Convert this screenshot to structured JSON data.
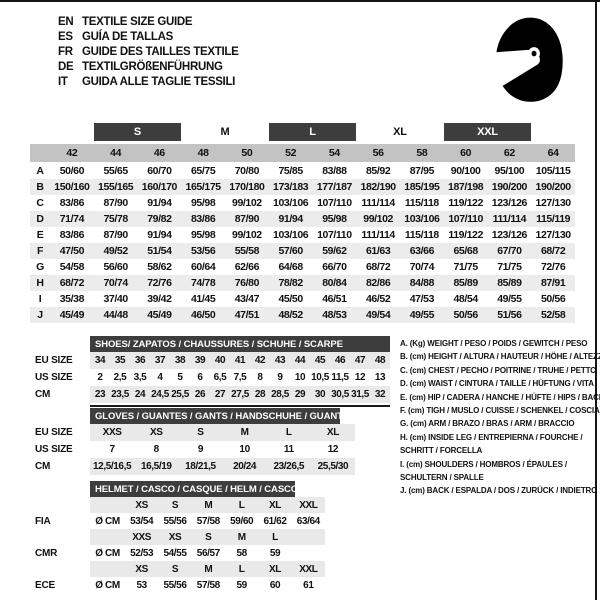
{
  "header": {
    "languages": [
      {
        "code": "EN",
        "title": "TEXTILE SIZE GUIDE"
      },
      {
        "code": "ES",
        "title": "GUÍA DE TALLAS"
      },
      {
        "code": "FR",
        "title": "GUIDE DES TAILLES TEXTILE"
      },
      {
        "code": "DE",
        "title": "TEXTILGRÖßENFÜHRUNG"
      },
      {
        "code": "IT",
        "title": "GUIDA ALLE TAGLIE TESSILI"
      }
    ],
    "logo_icon": "racing-helmet-icon"
  },
  "main_table": {
    "size_groups": [
      {
        "label": "S",
        "highlighted": true
      },
      {
        "label": "M",
        "highlighted": false
      },
      {
        "label": "L",
        "highlighted": true
      },
      {
        "label": "XL",
        "highlighted": false
      },
      {
        "label": "XXL",
        "highlighted": true
      }
    ],
    "numeric_sizes": [
      "42",
      "44",
      "46",
      "48",
      "50",
      "52",
      "54",
      "56",
      "58",
      "60",
      "62",
      "64"
    ],
    "rows": [
      {
        "letter": "A",
        "values": [
          "50/60",
          "55/65",
          "60/70",
          "65/75",
          "70/80",
          "75/85",
          "83/88",
          "85/92",
          "87/95",
          "90/100",
          "95/100",
          "105/115"
        ]
      },
      {
        "letter": "B",
        "values": [
          "150/160",
          "155/165",
          "160/170",
          "165/175",
          "170/180",
          "173/183",
          "177/187",
          "182/190",
          "185/195",
          "187/198",
          "190/200",
          "190/200"
        ]
      },
      {
        "letter": "C",
        "values": [
          "83/86",
          "87/90",
          "91/94",
          "95/98",
          "99/102",
          "103/106",
          "107/110",
          "111/114",
          "115/118",
          "119/122",
          "123/126",
          "127/130"
        ]
      },
      {
        "letter": "D",
        "values": [
          "71/74",
          "75/78",
          "79/82",
          "83/86",
          "87/90",
          "91/94",
          "95/98",
          "99/102",
          "103/106",
          "107/110",
          "111/114",
          "115/119"
        ]
      },
      {
        "letter": "E",
        "values": [
          "83/86",
          "87/90",
          "91/94",
          "95/98",
          "99/102",
          "103/106",
          "107/110",
          "111/114",
          "115/118",
          "119/122",
          "123/126",
          "127/130"
        ]
      },
      {
        "letter": "F",
        "values": [
          "47/50",
          "49/52",
          "51/54",
          "53/56",
          "55/58",
          "57/60",
          "59/62",
          "61/63",
          "63/66",
          "65/68",
          "67/70",
          "68/72"
        ]
      },
      {
        "letter": "G",
        "values": [
          "54/58",
          "56/60",
          "58/62",
          "60/64",
          "62/66",
          "64/68",
          "66/70",
          "68/72",
          "70/74",
          "71/75",
          "71/75",
          "72/76"
        ]
      },
      {
        "letter": "H",
        "values": [
          "68/72",
          "70/74",
          "72/76",
          "74/78",
          "76/80",
          "78/82",
          "80/84",
          "82/86",
          "84/88",
          "85/89",
          "85/89",
          "87/91"
        ]
      },
      {
        "letter": "I",
        "values": [
          "35/38",
          "37/40",
          "39/42",
          "41/45",
          "43/47",
          "45/50",
          "46/51",
          "46/52",
          "47/53",
          "48/54",
          "49/55",
          "50/56"
        ]
      },
      {
        "letter": "J",
        "values": [
          "45/49",
          "44/48",
          "45/49",
          "46/50",
          "47/51",
          "48/52",
          "48/53",
          "49/54",
          "49/55",
          "50/56",
          "51/56",
          "52/58"
        ]
      }
    ]
  },
  "shoes": {
    "title": "SHOES/ ZAPATOS / CHAUSSURES / SCHUHE / SCARPE",
    "rows": [
      {
        "label": "EU SIZE",
        "values": [
          "34",
          "35",
          "36",
          "37",
          "38",
          "39",
          "40",
          "41",
          "42",
          "43",
          "44",
          "45",
          "46",
          "47",
          "48"
        ]
      },
      {
        "label": "US SIZE",
        "values": [
          "2",
          "2,5",
          "3,5",
          "4",
          "5",
          "6",
          "6,5",
          "7,5",
          "8",
          "9",
          "10",
          "10,5",
          "11,5",
          "12",
          "13"
        ]
      },
      {
        "label": "CM",
        "values": [
          "23",
          "23,5",
          "24",
          "24,5",
          "25,5",
          "26",
          "27",
          "27,5",
          "28",
          "28,5",
          "29",
          "30",
          "30,5",
          "31,5",
          "32"
        ]
      }
    ]
  },
  "gloves": {
    "title": "GLOVES / GUANTES / GANTS / HANDSCHUHE / GUANTI",
    "rows": [
      {
        "label": "EU SIZE",
        "values": [
          "XXS",
          "XS",
          "S",
          "M",
          "L",
          "XL"
        ]
      },
      {
        "label": "US SIZE",
        "values": [
          "7",
          "8",
          "9",
          "10",
          "11",
          "12"
        ]
      },
      {
        "label": "CM",
        "values": [
          "12,5/16,5",
          "16,5/19",
          "18/21,5",
          "20/24",
          "23/26,5",
          "25,5/30"
        ]
      }
    ]
  },
  "helmet": {
    "title": "HELMET / CASCO / CASQUE / HELM / CASCO",
    "unit_label": "Ø CM",
    "groups": [
      {
        "label": "FIA",
        "sizes": [
          "XS",
          "S",
          "M",
          "L",
          "XL",
          "XXL"
        ],
        "values": [
          "53/54",
          "55/56",
          "57/58",
          "59/60",
          "61/62",
          "63/64"
        ]
      },
      {
        "label": "CMR",
        "sizes": [
          "XXS",
          "XS",
          "S",
          "M",
          "L"
        ],
        "values": [
          "52/53",
          "54/55",
          "56/57",
          "58",
          "59"
        ]
      },
      {
        "label": "ECE",
        "sizes": [
          "XS",
          "S",
          "M",
          "L",
          "XL",
          "XXL"
        ],
        "values": [
          "53",
          "55/56",
          "57/58",
          "59",
          "60",
          "61"
        ]
      }
    ]
  },
  "legend": {
    "lines": [
      "A. (Kg) WEIGHT / PESO / POIDS / GEWITCH / PESO",
      "B. (cm) HEIGHT / ALTURA / HAUTEUR / HÖHE / ALTEZZA",
      "C. (cm) CHEST / PECHO / POITRINE / TRUHE / PETTO",
      "D. (cm) WAIST / CINTURA / TAILLE / HÜFTUNG / VITA",
      "E. (cm) HIP / CADERA / HANCHE / HÜFTE / HIPS / BACINO",
      "F. (cm) TIGH / MUSLO / CUISSE / SCHENKEL / COSCIA",
      "G. (cm) ARM / BRAZO / BRAS / ARM / BRACCIO",
      "H. (cm) INSIDE LEG / ENTREPIERNA / FOURCHE /",
      "SCHRITT / FORCELLA",
      "I. (cm) SHOULDERS / HOMBROS / ÉPAULES /",
      "SCHULTERN / SPALLE",
      "J. (cm) BACK / ESPALDA / DOS / ZURÜCK / INDIETRO"
    ]
  },
  "colors": {
    "bar_dark": "#3d3d3d",
    "header_gray": "#c3c3c3",
    "row_alt": "#ececec",
    "section_row_gray": "#e9e9e9",
    "text": "#111111",
    "border": "#151515"
  }
}
